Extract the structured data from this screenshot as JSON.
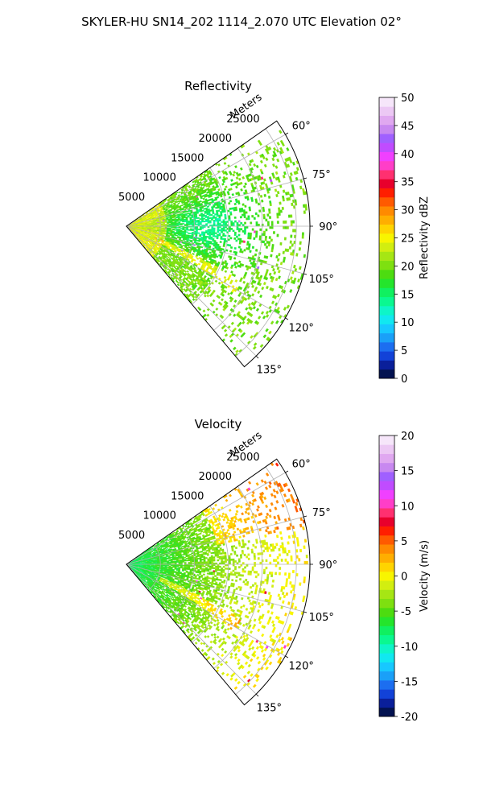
{
  "figure": {
    "title": "SKYLER-HU  SN14_202  1114_2.070 UTC Elevation 02°"
  },
  "chart_data": [
    {
      "type": "heatmap",
      "subtype": "polar-sector",
      "title": "Reflectivity",
      "range_label": "Meters",
      "range_ticks": [
        5000,
        10000,
        15000,
        20000,
        25000
      ],
      "range_lim": [
        0,
        27000
      ],
      "azimuth_ticks": [
        "60°",
        "75°",
        "90°",
        "105°",
        "120°",
        "135°"
      ],
      "azimuth_lim_deg": [
        55,
        140
      ],
      "grid": true,
      "colorbar": {
        "label": "Reflectivity dBZ",
        "ticks": [
          0,
          5,
          10,
          15,
          20,
          25,
          30,
          35,
          40,
          45,
          50
        ],
        "lim": [
          0,
          50
        ],
        "colors": [
          "#021250",
          "#0a1f9a",
          "#1242d8",
          "#1c6ef0",
          "#1aa0f8",
          "#17c8ff",
          "#11e8f0",
          "#0ef5c8",
          "#0af890",
          "#10f060",
          "#24e52c",
          "#4ddc10",
          "#7ee010",
          "#a6e614",
          "#d2ee10",
          "#f8f500",
          "#ffd400",
          "#ffae00",
          "#ff8a00",
          "#ff5a00",
          "#ff1e00",
          "#e8002c",
          "#ff3070",
          "#ff3ec8",
          "#f040ff",
          "#c04cff",
          "#a060ff",
          "#c888f0",
          "#e0a8f0",
          "#ecc8f4",
          "#f6e6fa"
        ]
      },
      "description_levels": "mostly 15-22 dBZ (cyan/green), scattered yellow 24-28 dBZ near origin, isolated red/magenta 35-45 dBZ cells"
    },
    {
      "type": "heatmap",
      "subtype": "polar-sector",
      "title": "Velocity",
      "range_label": "Meters",
      "range_ticks": [
        5000,
        10000,
        15000,
        20000,
        25000
      ],
      "range_lim": [
        0,
        27000
      ],
      "azimuth_ticks": [
        "60°",
        "75°",
        "90°",
        "105°",
        "120°",
        "135°"
      ],
      "azimuth_lim_deg": [
        55,
        140
      ],
      "grid": true,
      "colorbar": {
        "label": "Velocity (m/s)",
        "ticks": [
          -20,
          -15,
          -10,
          -5,
          0,
          5,
          10,
          15,
          20
        ],
        "lim": [
          -20,
          20
        ],
        "colors": [
          "#021250",
          "#0a1f9a",
          "#1242d8",
          "#1c6ef0",
          "#1aa0f8",
          "#17c8ff",
          "#11e8f0",
          "#0ef5c8",
          "#0af890",
          "#10f060",
          "#24e52c",
          "#4ddc10",
          "#7ee010",
          "#a6e614",
          "#d2ee10",
          "#f8f500",
          "#ffd400",
          "#ffae00",
          "#ff8a00",
          "#ff5a00",
          "#ff1e00",
          "#e8002c",
          "#ff3070",
          "#ff3ec8",
          "#f040ff",
          "#c04cff",
          "#a060ff",
          "#c888f0",
          "#e0a8f0",
          "#ecc8f4",
          "#f6e6fa"
        ]
      },
      "description_levels": "mostly -10 to -5 m/s (green) near origin, -3 to 3 m/s (yellow-green/yellow) at far range"
    }
  ]
}
